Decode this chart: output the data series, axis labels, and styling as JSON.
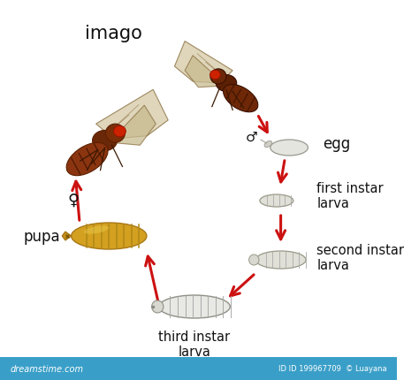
{
  "background_color": "#ffffff",
  "arrow_color": "#cc1111",
  "text_color": "#111111",
  "bottom_color": "#3a9fc8",
  "dreamstime": "dreamstime.com",
  "watermark_id": "ID 199967709",
  "watermark_author": "Luayana",
  "imago_label": "imago",
  "female_symbol": "♀",
  "male_symbol": "♂",
  "egg_label": "egg",
  "first_instar_label": "first instar\nlarva",
  "second_instar_label": "second instar\nlarva",
  "third_instar_label": "third instar\nlarva",
  "pupa_label": "pupa",
  "fly_body_color": "#7a3010",
  "fly_body_dark": "#5a1f00",
  "fly_wing_color": "#d8ccaa",
  "fly_wing_edge": "#8b7040",
  "fly_eye_color": "#cc2200",
  "fly_leg_color": "#3a1800",
  "pupa_color": "#d4a020",
  "pupa_edge": "#a87818",
  "pupa_stripe": "#b08818",
  "larva_color": "#e8e8e2",
  "larva_edge": "#999988",
  "larva_stripe": "#aaaaaa",
  "egg_color": "#e0e0dc",
  "egg_edge": "#aaaaaa"
}
